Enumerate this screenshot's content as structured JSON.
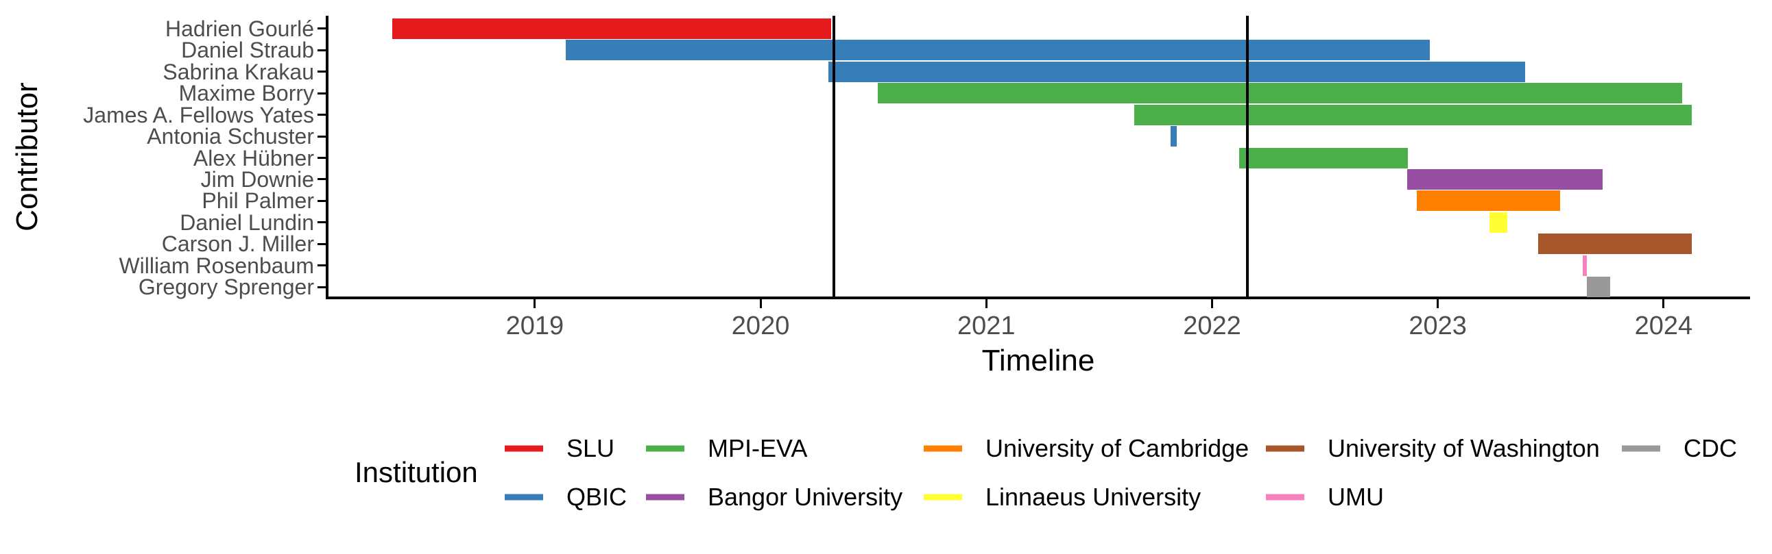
{
  "chart_data": {
    "type": "bar",
    "subtype": "horizontal-gantt",
    "title": "",
    "xlabel": "Timeline",
    "ylabel": "Contributor",
    "legend_title": "Institution",
    "legend_position": "bottom",
    "grid": false,
    "xlim": [
      2018.086,
      2024.377
    ],
    "x_ticks": [
      2019,
      2020,
      2021,
      2022,
      2023,
      2024
    ],
    "x_tick_labels": [
      "2019",
      "2020",
      "2021",
      "2022",
      "2023",
      "2024"
    ],
    "event_lines_x": [
      2020.325,
      2022.157
    ],
    "categories": [
      "Hadrien Gourlé",
      "Daniel Straub",
      "Sabrina Krakau",
      "Maxime Borry",
      "James A. Fellows Yates",
      "Antonia Schuster",
      "Alex Hübner",
      "Jim Downie",
      "Phil Palmer",
      "Daniel Lundin",
      "Carson J. Miller",
      "William Rosenbaum",
      "Gregory Sprenger"
    ],
    "bars": [
      {
        "contributor": "Hadrien Gourlé",
        "institution": "SLU",
        "start": 2018.368,
        "end": 2020.312
      },
      {
        "contributor": "Daniel Straub",
        "institution": "QBIC",
        "start": 2019.137,
        "end": 2022.964
      },
      {
        "contributor": "Sabrina Krakau",
        "institution": "QBIC",
        "start": 2020.3,
        "end": 2023.387
      },
      {
        "contributor": "Maxime Borry",
        "institution": "MPI-EVA",
        "start": 2020.519,
        "end": 2024.082
      },
      {
        "contributor": "James A. Fellows Yates",
        "institution": "MPI-EVA",
        "start": 2021.655,
        "end": 2024.125
      },
      {
        "contributor": "Antonia Schuster",
        "institution": "QBIC",
        "start": 2021.816,
        "end": 2021.843
      },
      {
        "contributor": "Alex Hübner",
        "institution": "MPI-EVA",
        "start": 2022.12,
        "end": 2022.868
      },
      {
        "contributor": "Jim Downie",
        "institution": "Bangor University",
        "start": 2022.864,
        "end": 2023.73
      },
      {
        "contributor": "Phil Palmer",
        "institution": "University of Cambridge",
        "start": 2022.906,
        "end": 2023.541
      },
      {
        "contributor": "Daniel Lundin",
        "institution": "Linnaeus University",
        "start": 2023.228,
        "end": 2023.307
      },
      {
        "contributor": "Carson J. Miller",
        "institution": "University of Washington",
        "start": 2023.444,
        "end": 2024.125
      },
      {
        "contributor": "William Rosenbaum",
        "institution": "UMU",
        "start": 2023.641,
        "end": 2023.661
      },
      {
        "contributor": "Gregory Sprenger",
        "institution": "CDC",
        "start": 2023.661,
        "end": 2023.764
      }
    ],
    "institution_colors": {
      "SLU": "#E41A1C",
      "QBIC": "#377EB8",
      "MPI-EVA": "#4DAF4A",
      "Bangor University": "#984EA3",
      "University of Cambridge": "#FF7F00",
      "Linnaeus University": "#FFFF33",
      "University of Washington": "#A65628",
      "UMU": "#F781BF",
      "CDC": "#999999"
    },
    "legend_entries": [
      {
        "label": "SLU",
        "color": "#E41A1C"
      },
      {
        "label": "QBIC",
        "color": "#377EB8"
      },
      {
        "label": "MPI-EVA",
        "color": "#4DAF4A"
      },
      {
        "label": "Bangor University",
        "color": "#984EA3"
      },
      {
        "label": "University of Cambridge",
        "color": "#FF7F00"
      },
      {
        "label": "Linnaeus University",
        "color": "#FFFF33"
      },
      {
        "label": "University of Washington",
        "color": "#A65628"
      },
      {
        "label": "UMU",
        "color": "#F781BF"
      },
      {
        "label": "CDC",
        "color": "#999999"
      }
    ],
    "axis_color": "#000000",
    "tick_label_color": "#4d4d4d"
  }
}
